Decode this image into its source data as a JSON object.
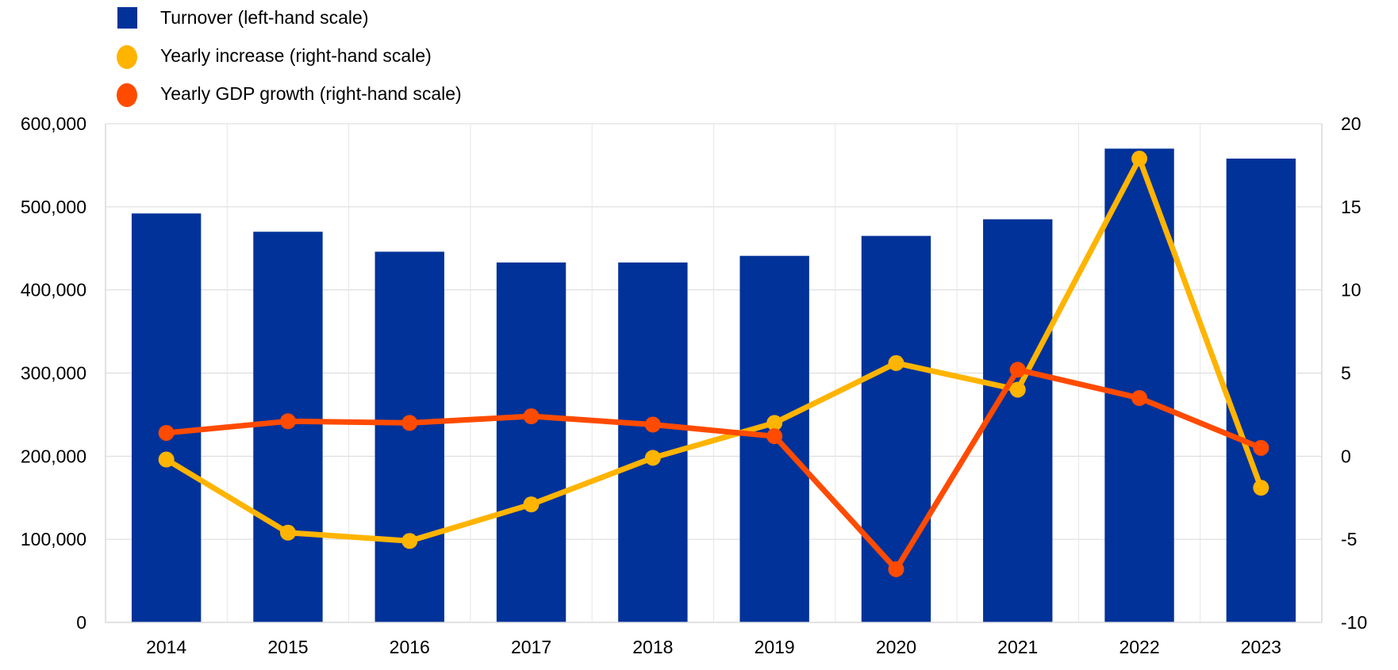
{
  "chart_data": {
    "type": "bar",
    "categories": [
      "2014",
      "2015",
      "2016",
      "2017",
      "2018",
      "2019",
      "2020",
      "2021",
      "2022",
      "2023"
    ],
    "legend_position": "top-left",
    "grid": true,
    "left_axis": {
      "range": [
        0,
        600000
      ],
      "ticks": [
        "0",
        "100,000",
        "200,000",
        "300,000",
        "400,000",
        "500,000",
        "600,000"
      ],
      "tick_values": [
        0,
        100000,
        200000,
        300000,
        400000,
        500000,
        600000
      ]
    },
    "right_axis": {
      "range": [
        -10,
        20
      ],
      "ticks": [
        "-10",
        "-5",
        "0",
        "5",
        "10",
        "15",
        "20"
      ],
      "tick_values": [
        -10,
        -5,
        0,
        5,
        10,
        15,
        20
      ]
    },
    "series": [
      {
        "name": "Turnover (left-hand scale)",
        "type": "bar",
        "axis": "left",
        "color": "#003299",
        "values": [
          492000,
          470000,
          446000,
          433000,
          433000,
          441000,
          465000,
          485000,
          570000,
          558000
        ]
      },
      {
        "name": "Yearly increase (right-hand scale)",
        "type": "line",
        "axis": "right",
        "color": "#FFB400",
        "values": [
          -0.2,
          -4.6,
          -5.1,
          -2.9,
          -0.1,
          2.0,
          5.6,
          4.0,
          17.9,
          -1.9
        ]
      },
      {
        "name": "Yearly GDP growth (right-hand scale)",
        "type": "line",
        "axis": "right",
        "color": "#FF4B00",
        "values": [
          1.4,
          2.1,
          2.0,
          2.4,
          1.9,
          1.2,
          -6.8,
          5.2,
          3.5,
          0.5
        ]
      }
    ]
  }
}
